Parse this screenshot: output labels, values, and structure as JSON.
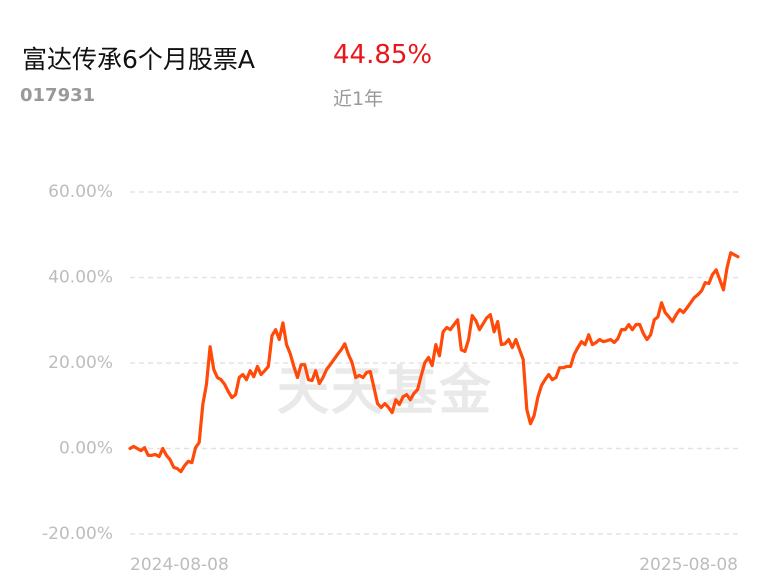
{
  "header": {
    "title": "富达传承6个月股票A",
    "return": "44.85%",
    "code": "017931",
    "period": "近1年"
  },
  "chart_data": {
    "type": "line",
    "watermark": "天天基金",
    "categories": [
      "2024-08-08",
      null,
      null,
      null,
      null,
      null,
      null,
      null,
      null,
      null,
      null,
      null,
      null,
      null,
      null,
      null,
      null,
      null,
      null,
      null,
      null,
      null,
      null,
      null,
      null,
      null,
      null,
      null,
      null,
      null,
      null,
      null,
      null,
      null,
      null,
      null,
      null,
      null,
      null,
      null,
      null,
      null,
      null,
      null,
      null,
      null,
      null,
      null,
      null,
      null,
      null,
      null,
      null,
      null,
      null,
      null,
      null,
      null,
      null,
      null,
      null,
      null,
      null,
      null,
      null,
      null,
      null,
      null,
      null,
      null,
      null,
      null,
      null,
      null,
      null,
      null,
      null,
      null,
      null,
      null,
      null,
      null,
      null,
      null,
      null,
      null,
      null,
      null,
      null,
      null,
      null,
      null,
      null,
      null,
      null,
      null,
      null,
      null,
      null,
      null,
      null,
      null,
      null,
      null,
      null,
      null,
      null,
      null,
      null,
      null,
      null,
      null,
      null,
      null,
      null,
      null,
      null,
      null,
      null,
      null,
      null,
      null,
      null,
      null,
      null,
      null,
      null,
      null,
      null,
      null,
      null,
      null,
      null,
      null,
      null,
      null,
      null,
      null,
      null,
      null,
      null,
      null,
      null,
      null,
      null,
      null,
      null,
      null,
      null,
      null,
      null,
      null,
      null,
      null,
      null,
      null,
      null,
      null,
      null,
      null,
      null,
      null,
      null,
      null,
      null,
      null,
      null,
      "2025-08-08"
    ],
    "series": [
      {
        "color": "#ff4a0a",
        "values": [
          0,
          0.5,
          0,
          -0.5,
          0.2,
          -1.6,
          -1.6,
          -1.4,
          -1.9,
          0,
          -1.6,
          -2.6,
          -4.4,
          -4.7,
          -5.4,
          -4.0,
          -3.0,
          -3.3,
          0.2,
          1.4,
          10.3,
          15.0,
          23.8,
          18.5,
          16.6,
          16.1,
          15.0,
          13.3,
          11.9,
          12.6,
          16.6,
          17.3,
          16.1,
          18.2,
          16.8,
          19.2,
          17.3,
          18.2,
          19.2,
          26.4,
          27.8,
          25.5,
          29.4,
          24.3,
          22.2,
          19.2,
          16.6,
          19.6,
          19.6,
          16.1,
          15.9,
          18.2,
          15.2,
          16.6,
          18.5,
          19.6,
          20.8,
          22.0,
          23.1,
          24.5,
          22.0,
          20.1,
          16.6,
          17.1,
          16.6,
          17.8,
          18.0,
          14.3,
          10.5,
          9.6,
          10.5,
          9.6,
          8.4,
          11.4,
          10.3,
          12.1,
          12.6,
          11.4,
          12.9,
          13.8,
          17.1,
          20.1,
          21.3,
          19.4,
          24.3,
          21.7,
          27.3,
          28.3,
          27.8,
          29.0,
          30.1,
          23.1,
          22.7,
          25.5,
          31.1,
          29.9,
          27.8,
          29.2,
          30.6,
          31.3,
          27.3,
          29.7,
          24.3,
          24.5,
          25.5,
          23.6,
          25.5,
          23.1,
          20.8,
          9.1,
          5.8,
          7.7,
          11.9,
          14.7,
          16.1,
          17.3,
          16.1,
          16.6,
          18.9,
          18.9,
          19.2,
          19.2,
          22.0,
          23.6,
          25.0,
          24.3,
          26.6,
          24.3,
          24.8,
          25.5,
          25.0,
          25.2,
          25.5,
          24.8,
          25.7,
          27.8,
          27.8,
          29.0,
          27.8,
          29.0,
          29.0,
          26.9,
          25.5,
          26.6,
          30.1,
          30.8,
          34.1,
          31.8,
          30.8,
          29.7,
          31.3,
          32.5,
          31.8,
          32.9,
          34.1,
          35.3,
          36.0,
          36.9,
          38.8,
          38.6,
          40.7,
          41.8,
          39.5,
          37.1,
          42.3,
          45.8,
          45.3,
          44.85
        ]
      }
    ],
    "ylim": [
      -20,
      60
    ],
    "yticks": [
      {
        "value": 60,
        "label": "60.00%"
      },
      {
        "value": 40,
        "label": "40.00%"
      },
      {
        "value": 20,
        "label": "20.00%"
      },
      {
        "value": 0,
        "label": "0.00%"
      },
      {
        "value": -20,
        "label": "-20.00%"
      }
    ],
    "grid": true
  }
}
